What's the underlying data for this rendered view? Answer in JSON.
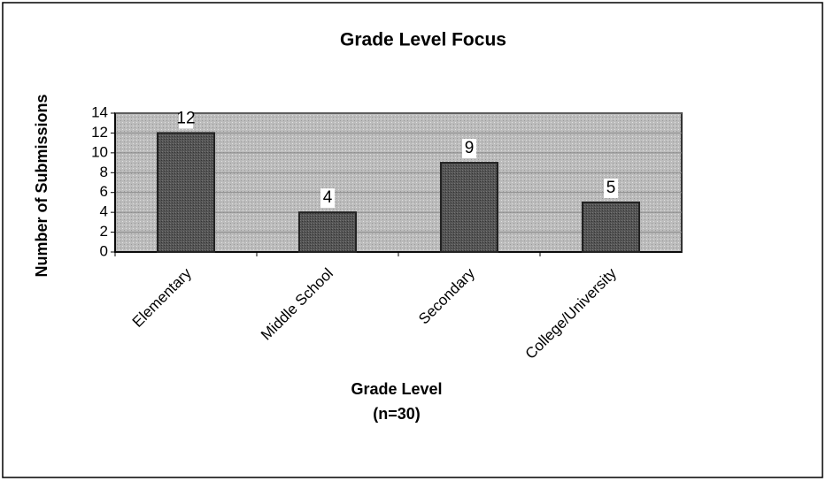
{
  "chart_data": {
    "type": "bar",
    "title": "Grade Level Focus",
    "xlabel": "Grade Level",
    "annotation": "(n=30)",
    "ylabel": "Number of Submissions",
    "categories": [
      "Elementary",
      "Middle School",
      "Secondary",
      "College/University"
    ],
    "values": [
      12,
      4,
      9,
      5
    ],
    "color": "#555555",
    "ylim": [
      0,
      14
    ],
    "yticks": [
      0,
      2,
      4,
      6,
      8,
      10,
      12,
      14
    ],
    "grid": true,
    "data_labels": true
  }
}
